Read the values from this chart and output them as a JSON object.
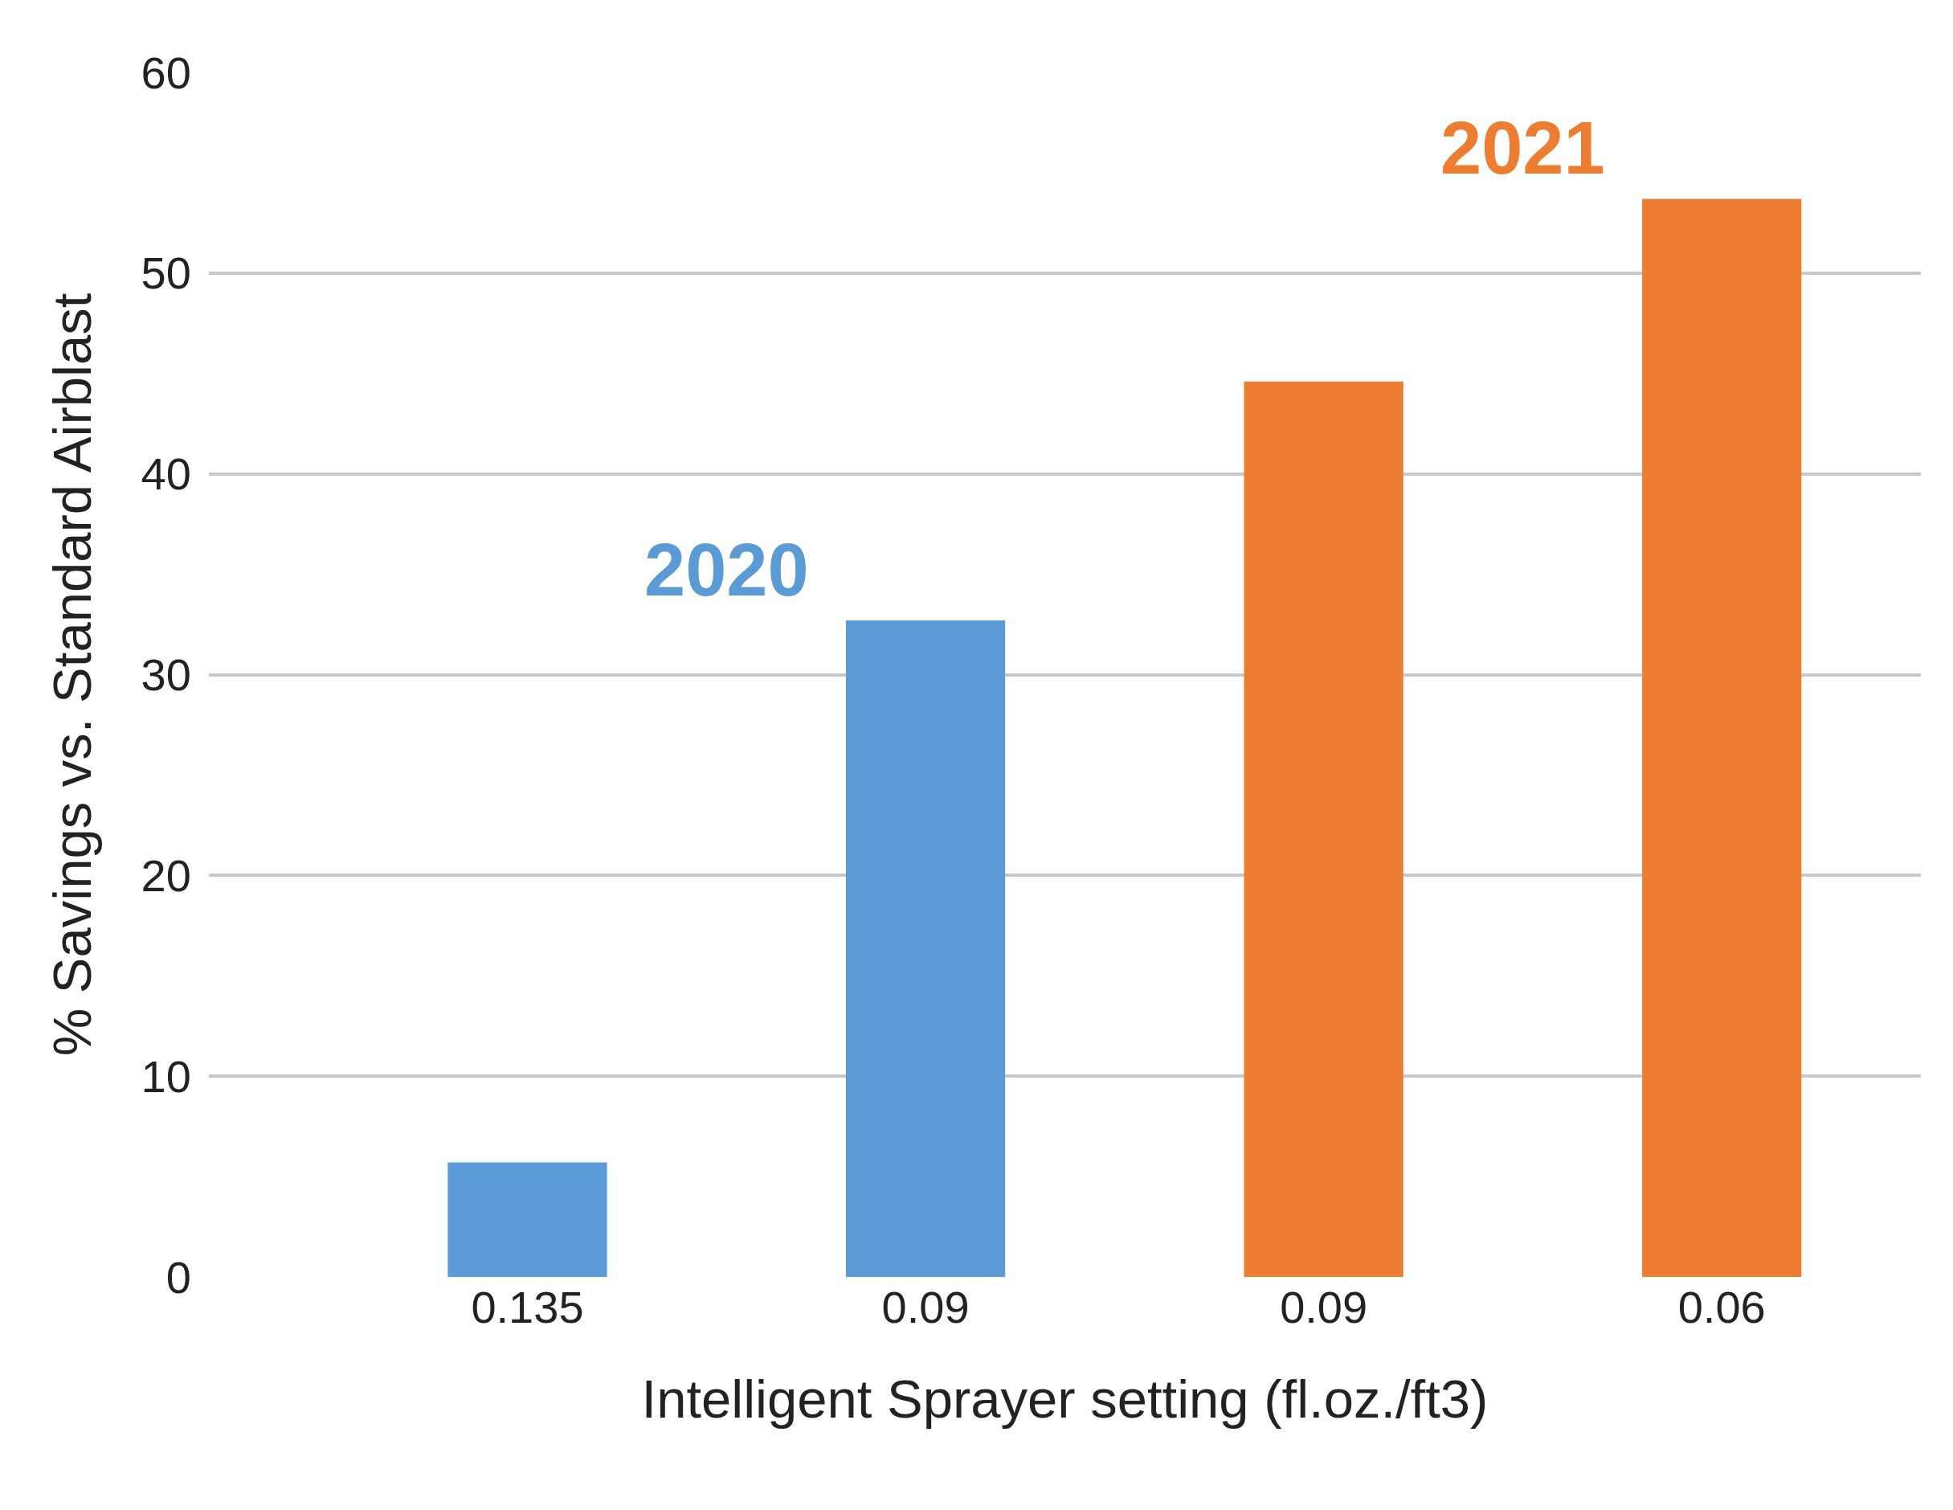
{
  "chart_data": {
    "type": "bar",
    "xlabel": "Intelligent Sprayer setting (fl.oz./ft3)",
    "ylabel": "% Savings vs. Standard Airblast",
    "categories": [
      "0.135",
      "0.09",
      "0.09",
      "0.06"
    ],
    "series": [
      {
        "name": "2020",
        "color": "#5b9bd5",
        "values": [
          5.7,
          32.7,
          null,
          null
        ]
      },
      {
        "name": "2021",
        "color": "#ed7d31",
        "values": [
          null,
          null,
          44.6,
          53.7
        ]
      }
    ],
    "ylim": [
      0,
      60
    ],
    "yticks": [
      0,
      10,
      20,
      30,
      40,
      50,
      60
    ],
    "grid": "y",
    "legend": false
  }
}
